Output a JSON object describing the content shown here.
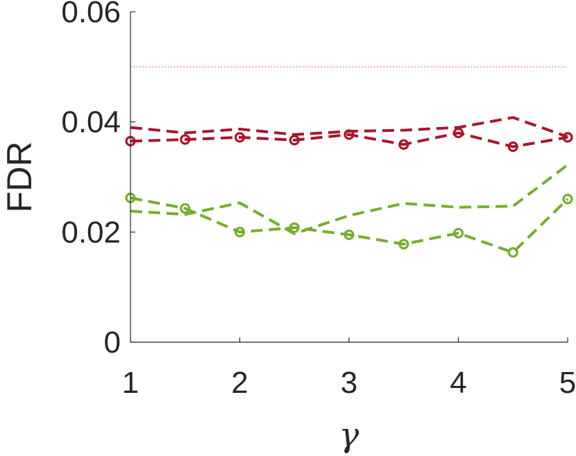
{
  "chart_data": {
    "type": "line",
    "title": "",
    "xlabel": "γ",
    "ylabel": "FDR",
    "xlim": [
      1,
      5
    ],
    "ylim": [
      0,
      0.06
    ],
    "xticks": [
      1,
      2,
      3,
      4,
      5
    ],
    "xtick_labels": [
      "1",
      "2",
      "3",
      "4",
      "5"
    ],
    "yticks": [
      0,
      0.02,
      0.04,
      0.06
    ],
    "ytick_labels": [
      "0",
      "0.02",
      "0.04",
      "0.06"
    ],
    "grid": false,
    "reference_line": {
      "y": 0.05,
      "color": "#e8413c",
      "style": "dotted"
    },
    "series": [
      {
        "color": "#a6172d",
        "markers": false,
        "x": [
          1,
          1.5,
          2,
          2.5,
          3,
          3.5,
          4,
          4.5,
          5
        ],
        "y": [
          0.039,
          0.038,
          0.0387,
          0.0377,
          0.0383,
          0.0385,
          0.039,
          0.0408,
          0.0373
        ]
      },
      {
        "color": "#a6172d",
        "markers": true,
        "x": [
          1,
          1.5,
          2,
          2.5,
          3,
          3.5,
          4,
          4.5,
          5
        ],
        "y": [
          0.0365,
          0.0368,
          0.0372,
          0.0367,
          0.0377,
          0.0359,
          0.038,
          0.0355,
          0.0372
        ]
      },
      {
        "color": "#77ac30",
        "markers": false,
        "x": [
          1,
          1.5,
          2,
          2.5,
          3,
          3.5,
          4,
          4.5,
          5
        ],
        "y": [
          0.0238,
          0.0232,
          0.0253,
          0.0197,
          0.023,
          0.0252,
          0.0245,
          0.0247,
          0.0322
        ]
      },
      {
        "color": "#77ac30",
        "markers": true,
        "x": [
          1,
          1.5,
          2,
          2.5,
          3,
          3.5,
          4,
          4.5,
          5
        ],
        "y": [
          0.0262,
          0.0243,
          0.02,
          0.0208,
          0.0195,
          0.0178,
          0.0198,
          0.0163,
          0.026
        ]
      }
    ]
  }
}
